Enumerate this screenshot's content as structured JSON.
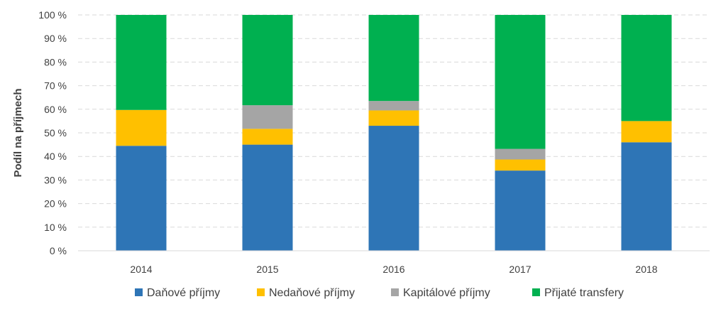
{
  "chart_data": {
    "type": "bar",
    "stacked": true,
    "percent": true,
    "title": "",
    "xlabel": "",
    "ylabel": "Podíl na příjmech",
    "ylim": [
      0,
      100
    ],
    "yticks": [
      "0 %",
      "10 %",
      "20 %",
      "30 %",
      "40 %",
      "50 %",
      "60 %",
      "70 %",
      "80 %",
      "90 %",
      "100 %"
    ],
    "categories": [
      "2014",
      "2015",
      "2016",
      "2017",
      "2018"
    ],
    "series": [
      {
        "name": "Daňové příjmy",
        "color": "#2E75B6",
        "values": [
          44.5,
          45.0,
          53.0,
          34.0,
          46.0
        ]
      },
      {
        "name": "Nedaňové příjmy",
        "color": "#FFC000",
        "values": [
          15.2,
          6.7,
          6.5,
          4.7,
          9.0
        ]
      },
      {
        "name": "Kapitálové příjmy",
        "color": "#A5A5A5",
        "values": [
          0.0,
          10.0,
          4.0,
          4.5,
          0.0
        ]
      },
      {
        "name": "Přijaté transfery",
        "color": "#00B050",
        "values": [
          40.3,
          38.3,
          36.5,
          56.8,
          45.0
        ]
      }
    ],
    "grid": true,
    "legend_position": "bottom"
  }
}
